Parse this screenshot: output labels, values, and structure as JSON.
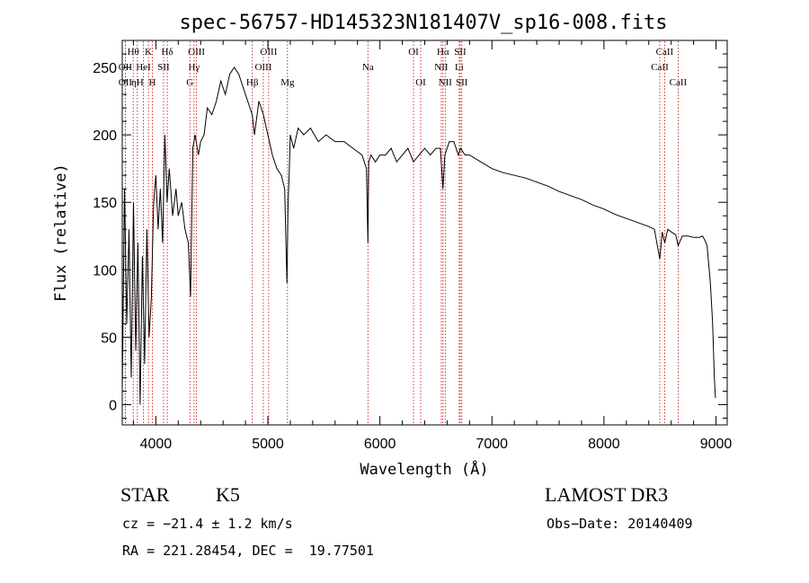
{
  "chart_data": {
    "type": "line",
    "title": "spec-56757-HD145323N181407V_sp16-008.fits",
    "xlabel": "Wavelength (Å)",
    "ylabel": "Flux (relative)",
    "xlim": [
      3700,
      9100
    ],
    "ylim": [
      -15,
      270
    ],
    "xticks": [
      4000,
      5000,
      6000,
      7000,
      8000,
      9000
    ],
    "yticks": [
      0,
      50,
      100,
      150,
      200,
      250
    ],
    "grid": false,
    "line_color": "#000000",
    "marker_color": "#cc0000",
    "series": [
      {
        "x": [
          3700,
          3720,
          3740,
          3760,
          3780,
          3800,
          3820,
          3840,
          3860,
          3880,
          3900,
          3920,
          3940,
          3960,
          3980,
          4000,
          4020,
          4040,
          4060,
          4080,
          4100,
          4120,
          4150,
          4180,
          4200,
          4230,
          4260,
          4290,
          4310,
          4330,
          4350,
          4380,
          4400,
          4430,
          4460,
          4500,
          4540,
          4580,
          4620,
          4660,
          4700,
          4740,
          4780,
          4820,
          4860,
          4880,
          4920,
          4960,
          5000,
          5040,
          5080,
          5120,
          5150,
          5170,
          5180,
          5190,
          5200,
          5230,
          5270,
          5320,
          5380,
          5450,
          5520,
          5600,
          5680,
          5760,
          5840,
          5880,
          5893,
          5900,
          5920,
          5960,
          6000,
          6050,
          6100,
          6150,
          6200,
          6250,
          6300,
          6350,
          6400,
          6450,
          6500,
          6540,
          6563,
          6580,
          6620,
          6660,
          6700,
          6720,
          6760,
          6800,
          6900,
          7000,
          7100,
          7200,
          7300,
          7400,
          7500,
          7600,
          7700,
          7800,
          7900,
          8000,
          8100,
          8200,
          8300,
          8400,
          8450,
          8498,
          8520,
          8542,
          8570,
          8600,
          8640,
          8662,
          8700,
          8750,
          8800,
          8850,
          8880,
          8900,
          8920,
          8950,
          8970,
          8985,
          8995
        ],
        "y": [
          10,
          160,
          60,
          130,
          20,
          150,
          40,
          120,
          0,
          110,
          30,
          130,
          50,
          80,
          150,
          170,
          130,
          160,
          120,
          200,
          150,
          175,
          140,
          160,
          140,
          150,
          130,
          120,
          80,
          190,
          200,
          185,
          195,
          200,
          220,
          215,
          225,
          240,
          230,
          245,
          250,
          245,
          235,
          225,
          215,
          200,
          225,
          215,
          200,
          185,
          175,
          170,
          160,
          90,
          150,
          170,
          200,
          190,
          205,
          200,
          205,
          195,
          200,
          195,
          195,
          190,
          185,
          175,
          120,
          180,
          185,
          180,
          185,
          185,
          190,
          180,
          185,
          190,
          180,
          185,
          190,
          185,
          190,
          190,
          160,
          185,
          195,
          195,
          185,
          190,
          185,
          185,
          180,
          175,
          172,
          170,
          168,
          165,
          162,
          158,
          155,
          152,
          148,
          145,
          141,
          138,
          135,
          132,
          130,
          108,
          128,
          120,
          130,
          128,
          126,
          118,
          125,
          125,
          124,
          124,
          125,
          122,
          118,
          90,
          60,
          20,
          5
        ]
      }
    ],
    "lines": [
      {
        "label": "Hθ",
        "x": 3798,
        "row": 0
      },
      {
        "label": "OII",
        "x": 3727,
        "row": 1
      },
      {
        "label": "OII",
        "x": 3727,
        "row": 2
      },
      {
        "label": "K",
        "x": 3934,
        "row": 0
      },
      {
        "label": "HeI",
        "x": 3889,
        "row": 1
      },
      {
        "label": "ηH",
        "x": 3835,
        "row": 2
      },
      {
        "label": "H",
        "x": 3969,
        "row": 2
      },
      {
        "label": "Hδ",
        "x": 4102,
        "row": 0
      },
      {
        "label": "SII",
        "x": 4069,
        "row": 1
      },
      {
        "label": "OIII",
        "x": 4363,
        "row": 0
      },
      {
        "label": "Hγ",
        "x": 4341,
        "row": 1
      },
      {
        "label": "G",
        "x": 4304,
        "row": 2
      },
      {
        "label": "OIII",
        "x": 5007,
        "row": 0
      },
      {
        "label": "OIII",
        "x": 4959,
        "row": 1
      },
      {
        "label": "Hβ",
        "x": 4861,
        "row": 2
      },
      {
        "label": "Mg",
        "x": 5175,
        "row": 2
      },
      {
        "label": "Na",
        "x": 5893,
        "row": 1
      },
      {
        "label": "OI",
        "x": 6300,
        "row": 0
      },
      {
        "label": "OI",
        "x": 6364,
        "row": 2
      },
      {
        "label": "Hα",
        "x": 6563,
        "row": 0
      },
      {
        "label": "SII",
        "x": 6717,
        "row": 0
      },
      {
        "label": "NII",
        "x": 6548,
        "row": 1
      },
      {
        "label": "Li",
        "x": 6708,
        "row": 1
      },
      {
        "label": "NII",
        "x": 6583,
        "row": 2
      },
      {
        "label": "SII",
        "x": 6731,
        "row": 2
      },
      {
        "label": "CaII",
        "x": 8542,
        "row": 0
      },
      {
        "label": "CaII",
        "x": 8498,
        "row": 1
      },
      {
        "label": "CaII",
        "x": 8662,
        "row": 2
      }
    ]
  },
  "info": {
    "class": "STAR",
    "subclass": "K5",
    "survey": "LAMOST DR3",
    "cz": "cz = −21.4 ± 1.2 km/s",
    "obs_date": "Obs−Date: 20140409",
    "radec": "RA = 221.28454, DEC =  19.77501"
  }
}
